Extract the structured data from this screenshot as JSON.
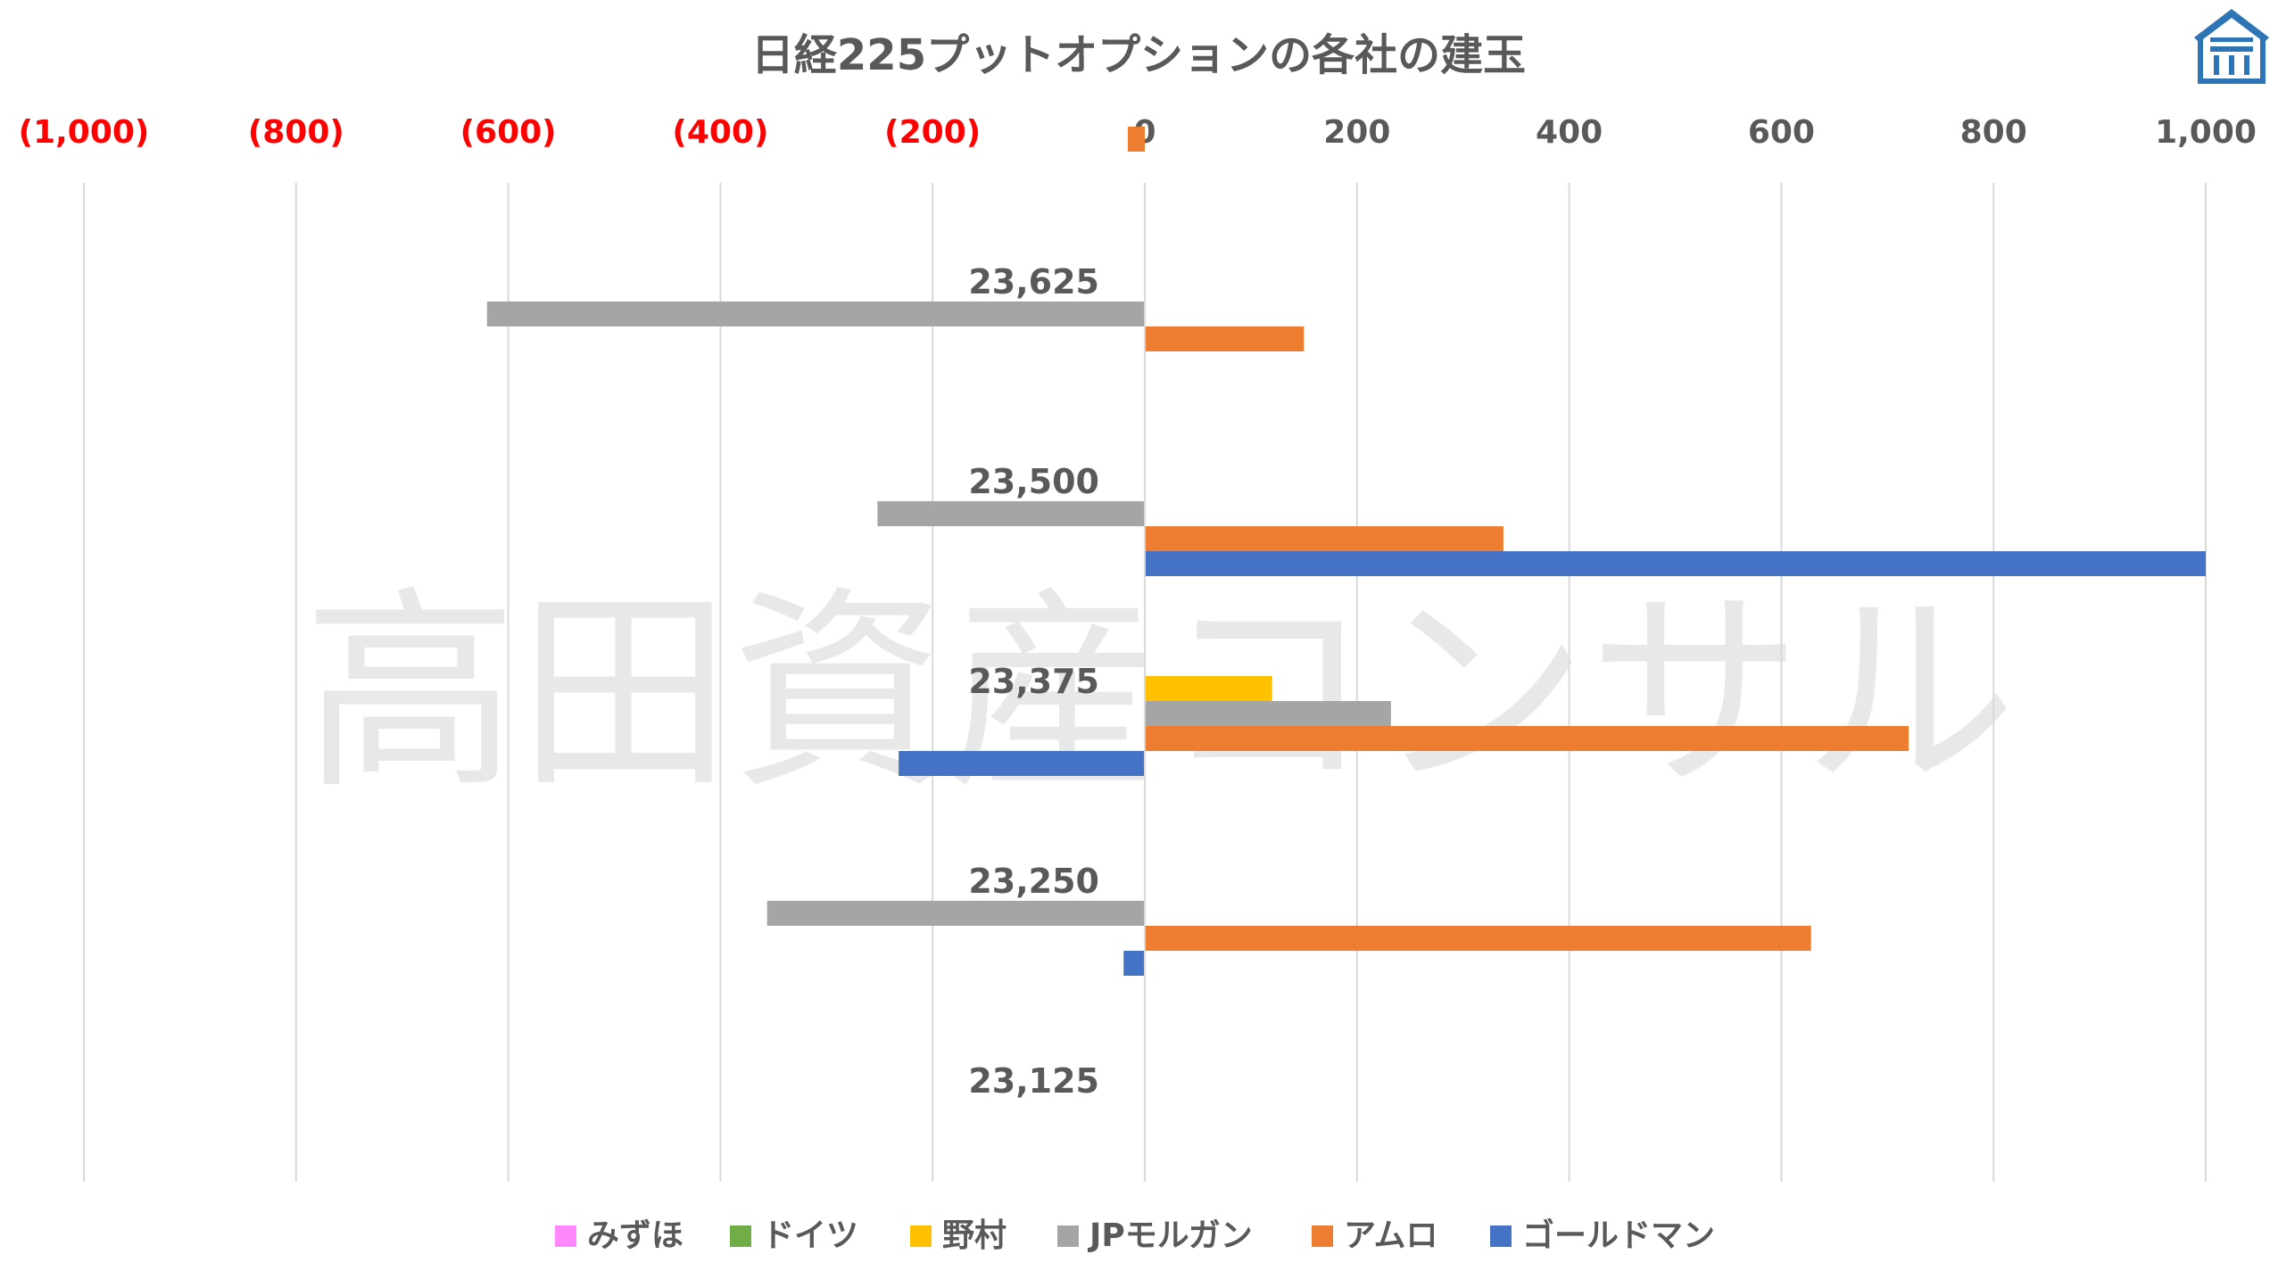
{
  "chart_data": {
    "type": "bar",
    "orientation": "horizontal",
    "title": "日経225プットオプションの各社の建玉",
    "watermark": "高田資産コンサル",
    "xlim": [
      -1000,
      1000
    ],
    "x_ticks": [
      {
        "value": -1000,
        "label": "(1,000)"
      },
      {
        "value": -800,
        "label": "(800)"
      },
      {
        "value": -600,
        "label": "(600)"
      },
      {
        "value": -400,
        "label": "(400)"
      },
      {
        "value": -200,
        "label": "(200)"
      },
      {
        "value": 0,
        "label": "0"
      },
      {
        "value": 200,
        "label": "200"
      },
      {
        "value": 400,
        "label": "400"
      },
      {
        "value": 600,
        "label": "600"
      },
      {
        "value": 800,
        "label": "800"
      },
      {
        "value": 1000,
        "label": "1,000"
      }
    ],
    "negative_tick_color": "#ff0000",
    "positive_tick_color": "#595959",
    "grid": true,
    "legend_position": "bottom",
    "categories": [
      "23,625",
      "23,500",
      "23,375",
      "23,250",
      "23,125"
    ],
    "series": [
      {
        "name": "みずほ",
        "color": "#ff88ff",
        "values": [
          0,
          0,
          0,
          0,
          0
        ]
      },
      {
        "name": "ドイツ",
        "color": "#70ad47",
        "values": [
          0,
          0,
          0,
          0,
          0
        ]
      },
      {
        "name": "野村",
        "color": "#ffc000",
        "values": [
          0,
          0,
          0,
          120,
          0
        ]
      },
      {
        "name": "JPモルガン",
        "color": "#a5a5a5",
        "values": [
          0,
          -620,
          -252,
          232,
          -356
        ]
      },
      {
        "name": "アムロ",
        "color": "#ed7d31",
        "values": [
          -16,
          150,
          338,
          720,
          628
        ]
      },
      {
        "name": "ゴールドマン",
        "color": "#4472c4",
        "values": [
          0,
          0,
          1000,
          -232,
          -20
        ]
      }
    ]
  }
}
